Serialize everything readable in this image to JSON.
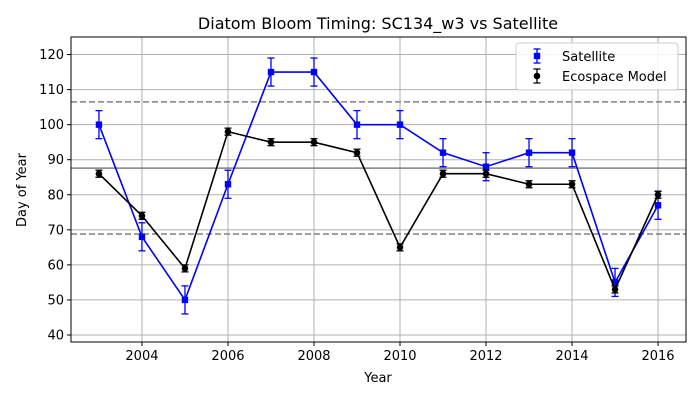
{
  "chart_data": {
    "type": "line",
    "title": "Diatom Bloom Timing: SC134_w3 vs Satellite",
    "xlabel": "Year",
    "ylabel": "Day of Year",
    "xlim": [
      2002.35,
      2016.65
    ],
    "ylim": [
      38,
      125
    ],
    "xticks": [
      2004,
      2006,
      2008,
      2010,
      2012,
      2014,
      2016
    ],
    "yticks": [
      40,
      50,
      60,
      70,
      80,
      90,
      100,
      110,
      120
    ],
    "grid": true,
    "legend_position": "upper right",
    "x": [
      2003,
      2004,
      2005,
      2006,
      2007,
      2008,
      2009,
      2010,
      2011,
      2012,
      2013,
      2014,
      2015,
      2016
    ],
    "series": [
      {
        "name": "Satellite",
        "color": "#0000ff",
        "marker": "square",
        "values": [
          100,
          68,
          50,
          83,
          115,
          115,
          100,
          100,
          92,
          88,
          92,
          92,
          55,
          77
        ],
        "errors": [
          4,
          4,
          4,
          4,
          4,
          4,
          4,
          4,
          4,
          4,
          4,
          4,
          4,
          4
        ]
      },
      {
        "name": "Ecospace Model",
        "color": "#000000",
        "marker": "circle",
        "values": [
          86,
          74,
          59,
          98,
          95,
          95,
          92,
          65,
          86,
          86,
          83,
          83,
          53,
          80
        ],
        "errors": [
          1,
          1,
          1,
          1,
          1,
          1,
          1,
          1,
          1,
          1,
          1,
          1,
          1,
          1
        ]
      }
    ],
    "reference_lines": [
      {
        "y": 87.6,
        "style": "solid",
        "color": "#808080"
      },
      {
        "y": 106.5,
        "style": "dashed",
        "color": "#808080"
      },
      {
        "y": 68.8,
        "style": "dashed",
        "color": "#808080"
      }
    ]
  }
}
